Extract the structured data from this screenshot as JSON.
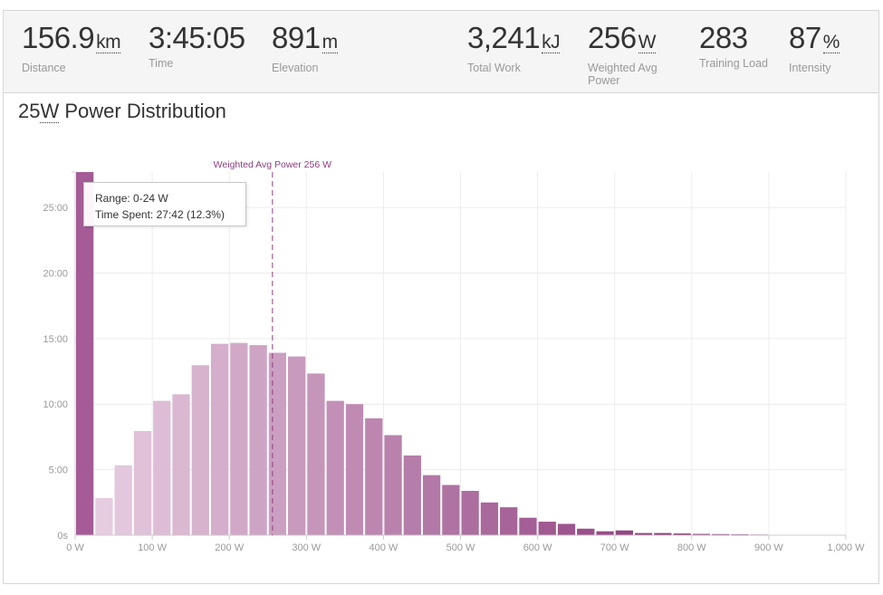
{
  "stats": [
    {
      "value": "156.9",
      "unit": "km",
      "label": "Distance"
    },
    {
      "value": "3:45:05",
      "unit": "",
      "label": "Time"
    },
    {
      "value": "891",
      "unit": "m",
      "label": "Elevation"
    },
    {
      "value": "3,241",
      "unit": "kJ",
      "label": "Total Work"
    },
    {
      "value": "256",
      "unit": "W",
      "label": "Weighted Avg Power"
    },
    {
      "value": "283",
      "unit": "",
      "label": "Training Load"
    },
    {
      "value": "87",
      "unit": "%",
      "label": "Intensity"
    }
  ],
  "title_prefix": "25",
  "title_unit": "W",
  "title_text": " Power Distribution",
  "tooltip": {
    "range": "Range: 0-24 W",
    "time_spent": "Time Spent: 27:42 (12.3%)"
  },
  "chart_data": {
    "type": "bar",
    "bin_width_w": 25,
    "x_ticks": [
      "0 W",
      "100 W",
      "200 W",
      "300 W",
      "400 W",
      "500 W",
      "600 W",
      "700 W",
      "800 W",
      "900 W",
      "1,000 W"
    ],
    "x_range": [
      0,
      1000
    ],
    "y_ticks": [
      "0s",
      "5:00",
      "10:00",
      "15:00",
      "20:00",
      "25:00"
    ],
    "y_range_seconds": [
      0,
      1662
    ],
    "values_seconds": [
      1662,
      170,
      320,
      477,
      615,
      645,
      778,
      876,
      880,
      870,
      835,
      818,
      740,
      615,
      600,
      535,
      458,
      365,
      275,
      230,
      203,
      150,
      128,
      80,
      62,
      52,
      30,
      18,
      22,
      10,
      10,
      8,
      6,
      5,
      4,
      3,
      2
    ],
    "annotation": {
      "label": "Weighted Avg Power 256 W",
      "x": 256
    },
    "colors": {
      "light": "#e6ccdf",
      "dark": "#8e3c7d",
      "annotation": "#8e3c7d"
    },
    "grid": true
  }
}
